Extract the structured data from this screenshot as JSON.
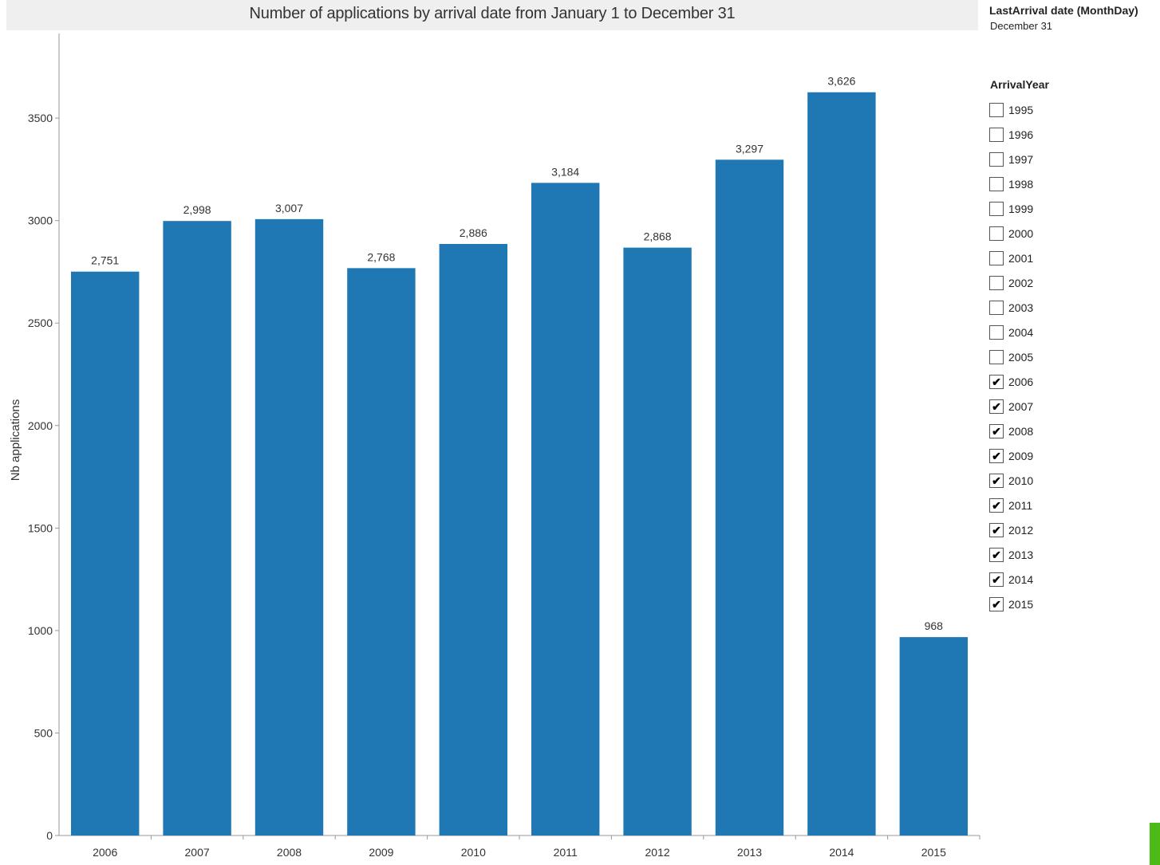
{
  "chart_data": {
    "type": "bar",
    "title": "Number of applications by arrival date from January 1 to December 31",
    "xlabel": "",
    "ylabel": "Nb applications",
    "categories": [
      "2006",
      "2007",
      "2008",
      "2009",
      "2010",
      "2011",
      "2012",
      "2013",
      "2014",
      "2015"
    ],
    "values": [
      2751,
      2998,
      3007,
      2768,
      2886,
      3184,
      2868,
      3297,
      3626,
      968
    ],
    "data_labels": [
      "2,751",
      "2,998",
      "3,007",
      "2,768",
      "2,886",
      "3,184",
      "2,868",
      "3,297",
      "3,626",
      "968"
    ],
    "yticks": [
      0,
      500,
      1000,
      1500,
      2000,
      2500,
      3000,
      3500
    ],
    "ylim": [
      0,
      3800
    ],
    "bar_color": "#1f77b4",
    "grid": false,
    "legend": "none"
  },
  "filters": {
    "last_arrival": {
      "title": "LastArrival date (MonthDay)",
      "value": "December 31"
    },
    "arrival_year": {
      "title": "ArrivalYear",
      "items": [
        {
          "label": "1995",
          "checked": false
        },
        {
          "label": "1996",
          "checked": false
        },
        {
          "label": "1997",
          "checked": false
        },
        {
          "label": "1998",
          "checked": false
        },
        {
          "label": "1999",
          "checked": false
        },
        {
          "label": "2000",
          "checked": false
        },
        {
          "label": "2001",
          "checked": false
        },
        {
          "label": "2002",
          "checked": false
        },
        {
          "label": "2003",
          "checked": false
        },
        {
          "label": "2004",
          "checked": false
        },
        {
          "label": "2005",
          "checked": false
        },
        {
          "label": "2006",
          "checked": true
        },
        {
          "label": "2007",
          "checked": true
        },
        {
          "label": "2008",
          "checked": true
        },
        {
          "label": "2009",
          "checked": true
        },
        {
          "label": "2010",
          "checked": true
        },
        {
          "label": "2011",
          "checked": true
        },
        {
          "label": "2012",
          "checked": true
        },
        {
          "label": "2013",
          "checked": true
        },
        {
          "label": "2014",
          "checked": true
        },
        {
          "label": "2015",
          "checked": true
        }
      ]
    }
  },
  "colors": {
    "accent": "#4cbb17"
  }
}
